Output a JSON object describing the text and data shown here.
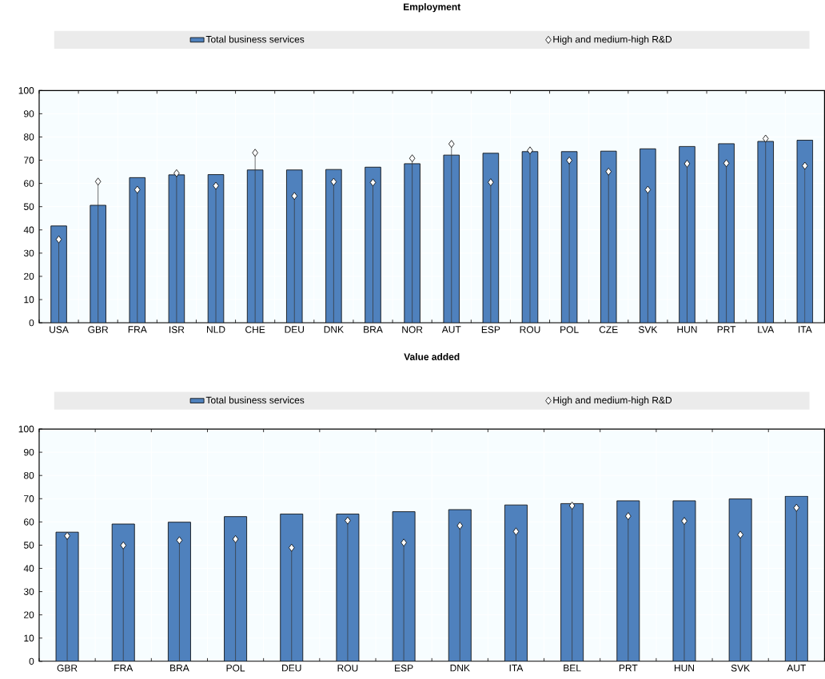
{
  "chart_data": [
    {
      "type": "bar",
      "title": "Employment",
      "categories": [
        "USA",
        "GBR",
        "FRA",
        "ISR",
        "NLD",
        "CHE",
        "DEU",
        "DNK",
        "BRA",
        "NOR",
        "AUT",
        "ESP",
        "ROU",
        "POL",
        "CZE",
        "SVK",
        "HUN",
        "PRT",
        "LVA",
        "ITA"
      ],
      "series": [
        {
          "name": "Total business services",
          "color": "#4f81bd",
          "values": [
            41.7,
            50.6,
            62.5,
            63.7,
            63.8,
            65.8,
            65.8,
            66.0,
            67.0,
            68.5,
            72.2,
            73.0,
            73.7,
            73.7,
            73.9,
            74.9,
            75.9,
            77.1,
            78.1,
            78.6
          ]
        },
        {
          "name": "High and medium-high R&D",
          "type": "lollipop",
          "marker": "diamond",
          "color": "#ffffff",
          "values": [
            35.9,
            60.8,
            57.3,
            64.4,
            59.0,
            73.2,
            54.6,
            60.7,
            60.4,
            70.8,
            77.0,
            60.5,
            74.2,
            69.9,
            65.1,
            57.3,
            68.5,
            68.7,
            79.3,
            67.6
          ]
        }
      ],
      "ylim": [
        0,
        100
      ],
      "yticks": [
        0,
        10,
        20,
        30,
        40,
        50,
        60,
        70,
        80,
        90,
        100
      ],
      "grid": true,
      "legend": "top"
    },
    {
      "type": "bar",
      "title": "Value added",
      "categories": [
        "GBR",
        "FRA",
        "BRA",
        "POL",
        "DEU",
        "ROU",
        "ESP",
        "DNK",
        "ITA",
        "BEL",
        "PRT",
        "HUN",
        "SVK",
        "AUT"
      ],
      "series": [
        {
          "name": "Total business services",
          "color": "#4f81bd",
          "values": [
            55.6,
            59.1,
            59.9,
            62.3,
            63.4,
            63.4,
            64.4,
            65.3,
            67.3,
            67.9,
            69.1,
            69.1,
            69.9,
            71.1
          ]
        },
        {
          "name": "High and medium-high R&D",
          "type": "lollipop",
          "marker": "diamond",
          "color": "#ffffff",
          "values": [
            54.0,
            49.9,
            52.1,
            52.6,
            48.9,
            60.6,
            51.1,
            58.4,
            55.9,
            67.0,
            62.5,
            60.4,
            54.5,
            66.1
          ]
        }
      ],
      "ylim": [
        0,
        100
      ],
      "yticks": [
        0,
        10,
        20,
        30,
        40,
        50,
        60,
        70,
        80,
        90,
        100
      ],
      "grid": true,
      "legend": "top"
    }
  ]
}
